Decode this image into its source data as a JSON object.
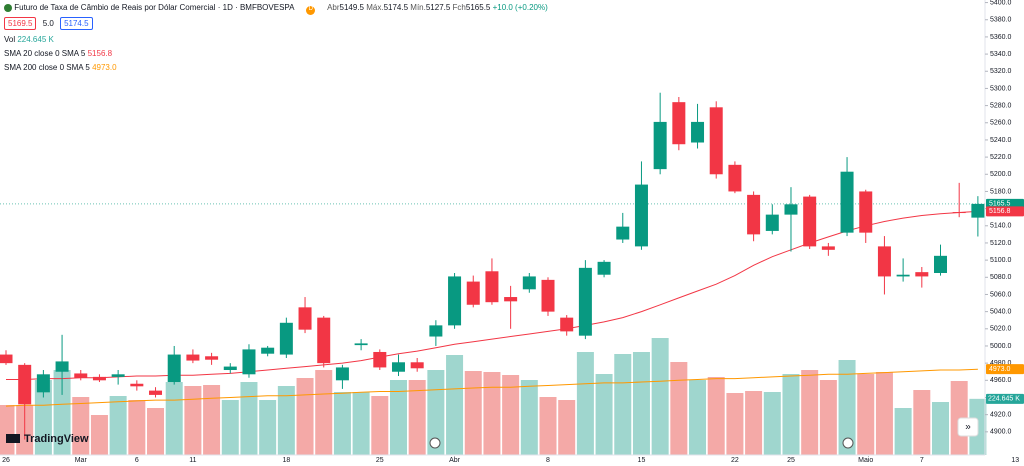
{
  "chart_data": {
    "type": "candlestick",
    "title": "Futuro de Taxa de Câmbio de Reais por Dólar Comercial · 1D · BMFBOVESPA",
    "ohlc_labels": [
      "Abr",
      "Máx.",
      "Mín.",
      "Fch"
    ],
    "change": "+10.0 (+0.20%)",
    "quote_buttons": [
      "5169.5",
      "5.0",
      "5174.5"
    ],
    "up_color": "#089981",
    "down_color": "#f23645",
    "categories": [
      "26",
      null,
      null,
      null,
      "Mar",
      null,
      null,
      "6",
      null,
      null,
      "11",
      null,
      null,
      null,
      null,
      "18",
      null,
      null,
      null,
      null,
      "25",
      null,
      null,
      null,
      "Abr",
      null,
      null,
      null,
      null,
      "8",
      null,
      null,
      null,
      null,
      "15",
      null,
      null,
      null,
      null,
      "22",
      null,
      null,
      "25",
      null,
      null,
      null,
      "Maio",
      null,
      null,
      "7",
      null,
      null,
      null
    ],
    "future_ticks": [
      "13"
    ],
    "open": [
      4990,
      4978,
      4946,
      4970,
      4968,
      4964,
      4964,
      4956,
      4948,
      4958,
      4990,
      4988,
      4972,
      4967,
      4991,
      4990,
      5045,
      5033,
      4960,
      5001,
      4993,
      4970,
      4981,
      5011,
      5024,
      5075,
      5087,
      5057,
      5066,
      5077,
      5033,
      5012,
      5083,
      5124,
      5116,
      5206,
      5284,
      5237,
      5278,
      5211,
      5176,
      5134,
      5153,
      5174,
      5116,
      5132,
      5180,
      5116,
      5081,
      5086,
      5085,
      5156,
      5149.5
    ],
    "high": [
      4995,
      4980,
      4972,
      5013,
      4972,
      4967,
      4972,
      4960,
      4952,
      5000,
      4996,
      4992,
      4980,
      5002,
      5000,
      5033,
      5057,
      5035,
      4978,
      5008,
      4996,
      4990,
      4986,
      5030,
      5085,
      5082,
      5102,
      5070,
      5085,
      5080,
      5036,
      5100,
      5100,
      5155,
      5215,
      5295,
      5290,
      5282,
      5285,
      5215,
      5180,
      5165,
      5185,
      5176,
      5120,
      5220,
      5182,
      5128,
      5102,
      5092,
      5118,
      5190,
      5174.5
    ],
    "low": [
      4978,
      4891,
      4940,
      4943,
      4960,
      4958,
      4955,
      4948,
      4940,
      4955,
      4980,
      4978,
      4968,
      4963,
      4988,
      4986,
      5015,
      4975,
      4950,
      4995,
      4972,
      4965,
      4970,
      5000,
      5020,
      5045,
      5048,
      5020,
      5062,
      5035,
      5012,
      5008,
      5080,
      5120,
      5112,
      5200,
      5228,
      5230,
      5195,
      5178,
      5122,
      5130,
      5110,
      5113,
      5105,
      5128,
      5120,
      5060,
      5075,
      5068,
      5082,
      5150,
      5127.5
    ],
    "close": [
      4980,
      4932,
      4967,
      4982,
      4963,
      4960,
      4967,
      4953,
      4943,
      4990,
      4983,
      4984,
      4976,
      4996,
      4998,
      5027,
      5019,
      4980,
      4975,
      5003,
      4975,
      4981,
      4974,
      5024,
      5081,
      5048,
      5051,
      5052,
      5081,
      5040,
      5017,
      5091,
      5098,
      5139,
      5188,
      5261,
      5235,
      5261,
      5200,
      5180,
      5130,
      5153,
      5165,
      5116,
      5112,
      5203,
      5132,
      5081,
      5083,
      5081,
      5105,
      5155.5,
      5165.5
    ],
    "volume": {
      "label": "Vol",
      "last_label": "224.645 K",
      "values": [
        200,
        200,
        300,
        340,
        232,
        160,
        236,
        220,
        188,
        292,
        276,
        280,
        220,
        292,
        220,
        276,
        308,
        340,
        252,
        252,
        236,
        300,
        300,
        340,
        400,
        336,
        332,
        320,
        300,
        232,
        220,
        412,
        324,
        404,
        412,
        468,
        372,
        300,
        312,
        248,
        256,
        252,
        324,
        340,
        300,
        380,
        324,
        332,
        188,
        260,
        212,
        296,
        224.645
      ],
      "up_color": "#9fd6ce",
      "down_color": "#f4a9a7",
      "badge_color": "#26a69a"
    },
    "sma": [
      {
        "name": "SMA 20 close 0 SMA 5",
        "color": "#f23645",
        "last_label": "5156.8",
        "values": [
          4961,
          4961,
          4962,
          4962,
          4963,
          4963,
          4964,
          4965,
          4965,
          4966,
          4966,
          4967,
          4968,
          4970,
          4972,
          4974,
          4976,
          4978,
          4980,
          4983,
          4987,
          4991,
          4994,
          4998,
          5002,
          5005,
          5008,
          5011,
          5014,
          5017,
          5020,
          5024,
          5028,
          5033,
          5040,
          5048,
          5056,
          5064,
          5072,
          5082,
          5094,
          5104,
          5112,
          5120,
          5127,
          5134,
          5140,
          5145,
          5149,
          5152,
          5154,
          5155.5,
          5156.8
        ]
      },
      {
        "name": "SMA 200 close 0 SMA 5",
        "color": "#ff9800",
        "last_label": "4973.0",
        "values": [
          4930,
          4931,
          4931,
          4932,
          4933,
          4934,
          4935,
          4936,
          4937,
          4937,
          4938,
          4939,
          4940,
          4941,
          4942,
          4942,
          4943,
          4944,
          4945,
          4946,
          4947,
          4947,
          4948,
          4949,
          4950,
          4951,
          4952,
          4952,
          4953,
          4954,
          4955,
          4956,
          4957,
          4957,
          4958,
          4959,
          4960,
          4961,
          4962,
          4962,
          4963,
          4964,
          4965,
          4966,
          4967,
          4967,
          4968,
          4969,
          4970,
          4971,
          4972,
          4972,
          4973
        ]
      }
    ],
    "last_close_label": "5165.5",
    "ylim": [
      4873,
      5403
    ],
    "yticks": [
      {
        "value": 4900,
        "label": "4900.0"
      },
      {
        "value": 4920,
        "label": "4920.0"
      },
      {
        "value": 4940,
        "label": "4940.0"
      },
      {
        "value": 4960,
        "label": "4960.0"
      },
      {
        "value": 4980,
        "label": "4980.0"
      },
      {
        "value": 5000,
        "label": "5000.0"
      },
      {
        "value": 5020,
        "label": "5020.0"
      },
      {
        "value": 5040,
        "label": "5040.0"
      },
      {
        "value": 5060,
        "label": "5060.0"
      },
      {
        "value": 5080,
        "label": "5080.0"
      },
      {
        "value": 5100,
        "label": "5100.0"
      },
      {
        "value": 5120,
        "label": "5120.0"
      },
      {
        "value": 5140,
        "label": "5140.0"
      },
      {
        "value": 5160,
        "label": "5160.0"
      },
      {
        "value": 5180,
        "label": "5180.0"
      },
      {
        "value": 5200,
        "label": "5200.0"
      },
      {
        "value": 5220,
        "label": "5220.0"
      },
      {
        "value": 5240,
        "label": "5240.0"
      },
      {
        "value": 5260,
        "label": "5260.0"
      },
      {
        "value": 5280,
        "label": "5280.0"
      },
      {
        "value": 5300,
        "label": "5300.0"
      },
      {
        "value": 5320,
        "label": "5320.0"
      },
      {
        "value": 5340,
        "label": "5340.0"
      },
      {
        "value": 5360,
        "label": "5360.0"
      },
      {
        "value": 5380,
        "label": "5380.0"
      },
      {
        "value": 5400,
        "label": "5400.0"
      }
    ],
    "logo": "TradingView"
  }
}
